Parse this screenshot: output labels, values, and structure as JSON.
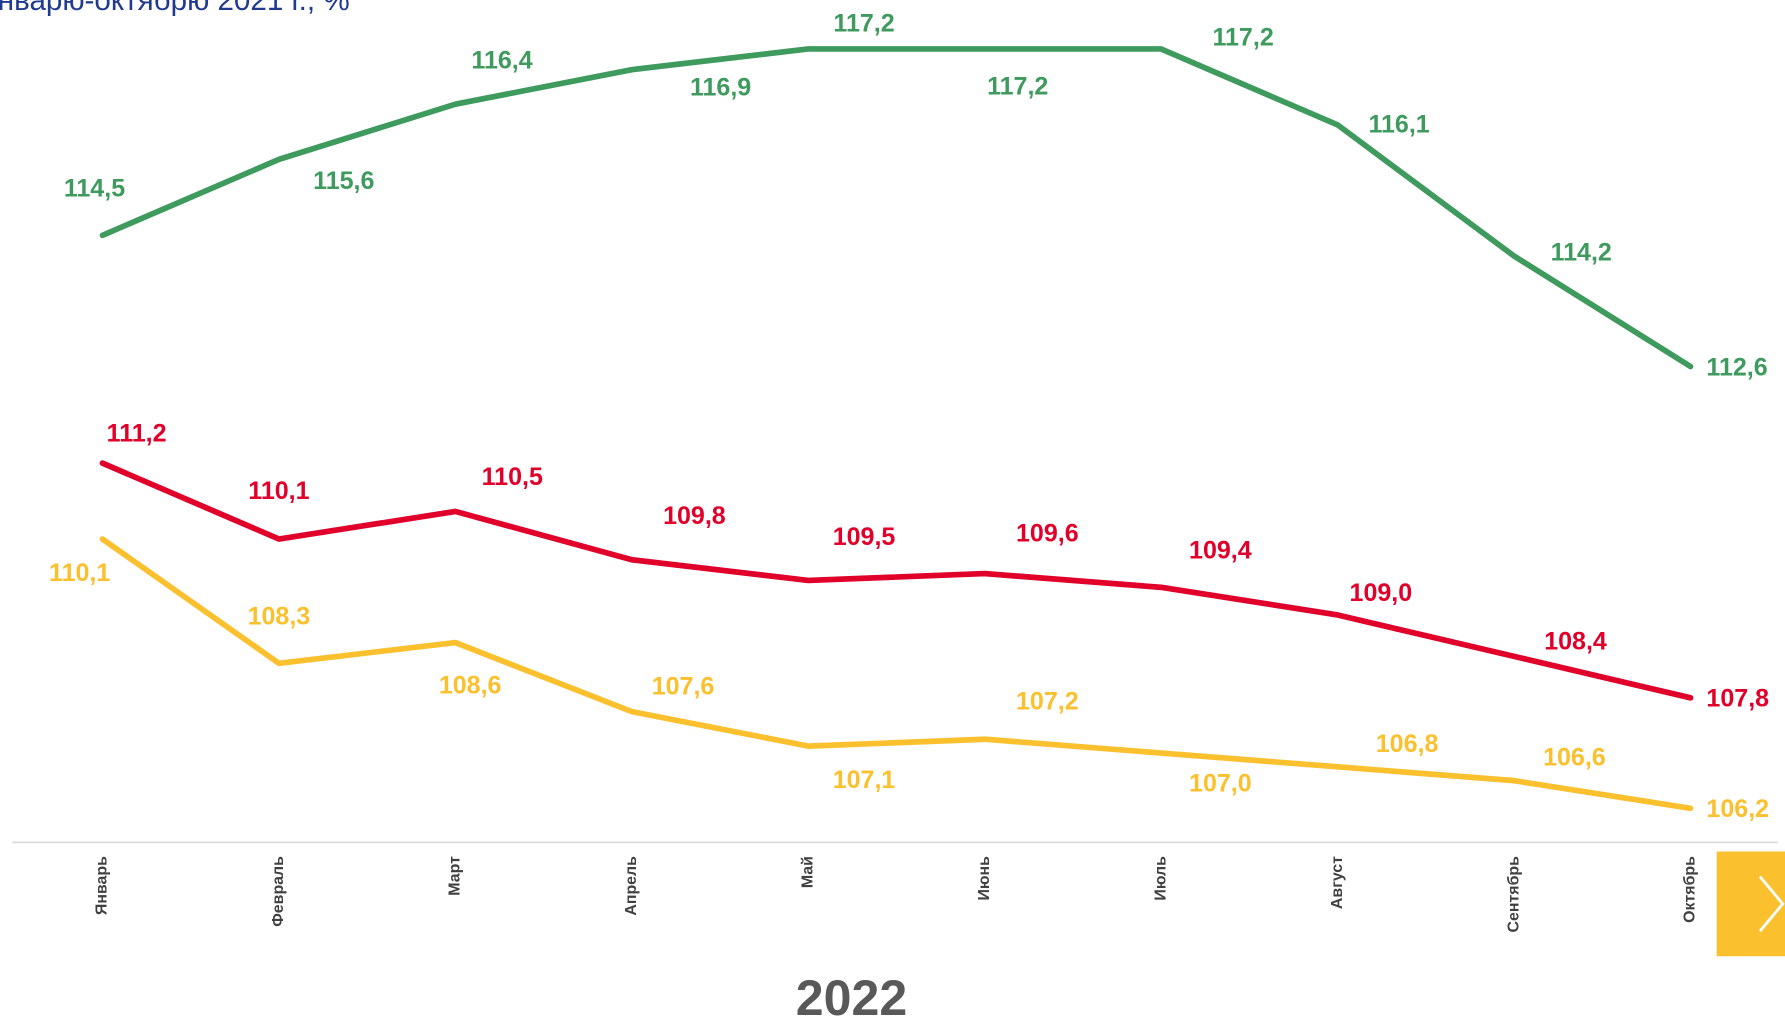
{
  "chart_data": {
    "type": "line",
    "title": "нварю-октябрю 2021 г., %",
    "xlabel": "2022",
    "categories": [
      "Январь",
      "Февраль",
      "Март",
      "Апрель",
      "Май",
      "Июнь",
      "Июль",
      "Август",
      "Сентябрь",
      "Октябрь"
    ],
    "series": [
      {
        "color": "#3f9a5e",
        "values": [
          114.5,
          115.6,
          116.4,
          116.9,
          117.2,
          117.2,
          117.2,
          116.1,
          114.2,
          112.6
        ],
        "value_labels": [
          "114,5",
          "115,6",
          "116,4",
          "116,9",
          "117,2",
          "117,2",
          "117,2",
          "116,1",
          "114,2",
          "112,6"
        ]
      },
      {
        "color": "#e0002a",
        "values": [
          111.2,
          110.1,
          110.5,
          109.8,
          109.5,
          109.6,
          109.4,
          109.0,
          108.4,
          107.8
        ],
        "value_labels": [
          "111,2",
          "110,1",
          "110,5",
          "109,8",
          "109,5",
          "109,6",
          "109,4",
          "109,0",
          "108,4",
          "107,8"
        ]
      },
      {
        "color": "#fbc02d",
        "values": [
          110.1,
          108.3,
          108.6,
          107.6,
          107.1,
          107.2,
          107.0,
          106.8,
          106.6,
          106.2
        ],
        "value_labels": [
          "110,1",
          "108,3",
          "108,6",
          "107,6",
          "107,1",
          "107,2",
          "107,0",
          "106,8",
          "106,6",
          "106,2"
        ]
      }
    ]
  }
}
